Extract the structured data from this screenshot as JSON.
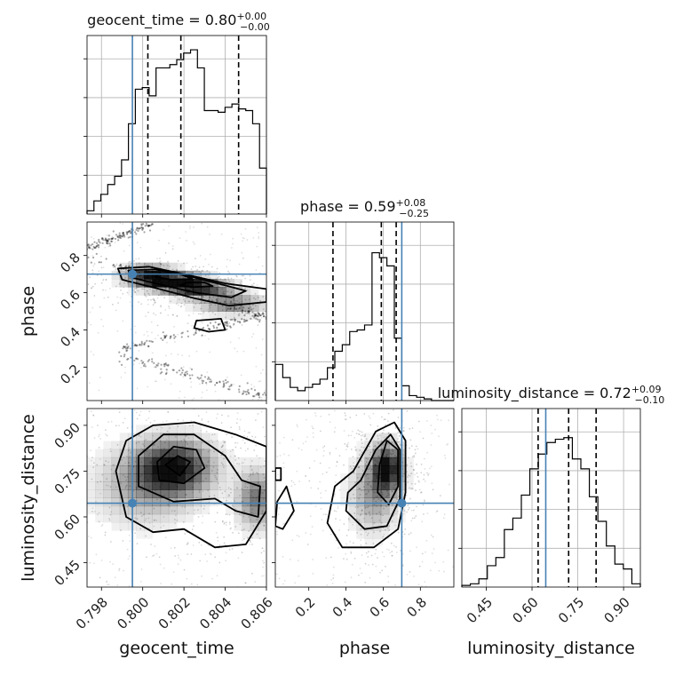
{
  "chart_data": {
    "type": "corner",
    "parameters": [
      {
        "name": "geocent_time",
        "label": "geocent_time",
        "title_main": "geocent_time = 0.80",
        "title_plus": "+0.00",
        "title_minus": "−0.00",
        "range": [
          0.7973,
          0.806
        ],
        "ticks": [
          0.798,
          0.8,
          0.802,
          0.804,
          0.806
        ],
        "tick_labels": [
          "0.798",
          "0.800",
          "0.802",
          "0.804",
          "0.806"
        ],
        "truth": 0.7995,
        "quantiles": [
          0.80025,
          0.80185,
          0.80465
        ],
        "hist_counts": [
          0.02,
          0.08,
          0.12,
          0.18,
          0.23,
          0.33,
          0.55,
          0.76,
          0.77,
          0.72,
          0.89,
          0.89,
          0.91,
          0.94,
          0.98,
          1.0,
          0.89,
          0.63,
          0.63,
          0.62,
          0.65,
          0.67,
          0.64,
          0.63,
          0.55,
          0.28
        ]
      },
      {
        "name": "phase",
        "label": "phase",
        "title_main": "phase = 0.59",
        "title_plus": "+0.08",
        "title_minus": "−0.25",
        "range": [
          0.02,
          0.98
        ],
        "ticks": [
          0.2,
          0.4,
          0.6,
          0.8
        ],
        "tick_labels": [
          "0.2",
          "0.4",
          "0.6",
          "0.8"
        ],
        "truth": 0.7,
        "quantiles": [
          0.33,
          0.59,
          0.67
        ],
        "hist_counts": [
          0.22,
          0.14,
          0.08,
          0.06,
          0.08,
          0.1,
          0.13,
          0.2,
          0.3,
          0.34,
          0.42,
          0.43,
          0.46,
          0.9,
          0.87,
          0.82,
          0.38,
          0.09,
          0.03,
          0.02,
          0.01,
          0.0,
          0.0,
          0.0
        ]
      },
      {
        "name": "luminosity_distance",
        "label": "luminosity_distance",
        "title_main": "luminosity_distance = 0.72",
        "title_plus": "+0.09",
        "title_minus": "−0.10",
        "range": [
          0.37,
          0.955
        ],
        "ticks": [
          0.45,
          0.6,
          0.75,
          0.9
        ],
        "tick_labels": [
          "0.45",
          "0.60",
          "0.75",
          "0.90"
        ],
        "truth": 0.645,
        "quantiles": [
          0.62,
          0.72,
          0.81
        ],
        "hist_counts": [
          0.01,
          0.02,
          0.05,
          0.13,
          0.18,
          0.35,
          0.42,
          0.56,
          0.72,
          0.81,
          0.88,
          0.9,
          0.91,
          0.78,
          0.72,
          0.55,
          0.4,
          0.25,
          0.14,
          0.11,
          0.02
        ]
      }
    ],
    "pairs": [
      {
        "x": "geocent_time",
        "y": "phase",
        "truth": [
          0.7995,
          0.7
        ],
        "density_blobs": [
          {
            "x": 0.8003,
            "y": 0.69,
            "sx": 0.0008,
            "sy": 0.035,
            "w": 0.9
          },
          {
            "x": 0.8016,
            "y": 0.66,
            "sx": 0.0009,
            "sy": 0.03,
            "w": 1.0
          },
          {
            "x": 0.8028,
            "y": 0.62,
            "sx": 0.001,
            "sy": 0.03,
            "w": 0.85
          },
          {
            "x": 0.8043,
            "y": 0.54,
            "sx": 0.001,
            "sy": 0.035,
            "w": 0.55
          }
        ],
        "tracks": [
          {
            "x0": 0.7973,
            "y0": 0.8,
            "x1": 0.806,
            "y1": 0.46
          },
          {
            "x0": 0.7973,
            "y0": 0.84,
            "x1": 0.8005,
            "y1": 0.97
          },
          {
            "x0": 0.799,
            "y0": 0.26,
            "x1": 0.806,
            "y1": 0.04
          },
          {
            "x0": 0.799,
            "y0": 0.3,
            "x1": 0.8058,
            "y1": 0.48
          }
        ],
        "contours": [
          [
            [
              0.7988,
              0.73
            ],
            [
              0.8003,
              0.74
            ],
            [
              0.802,
              0.7
            ],
            [
              0.804,
              0.65
            ],
            [
              0.806,
              0.62
            ],
            [
              0.806,
              0.55
            ],
            [
              0.8042,
              0.53
            ],
            [
              0.8025,
              0.57
            ],
            [
              0.8008,
              0.62
            ],
            [
              0.799,
              0.67
            ]
          ],
          [
            [
              0.7993,
              0.72
            ],
            [
              0.8006,
              0.725
            ],
            [
              0.8022,
              0.69
            ],
            [
              0.8038,
              0.645
            ],
            [
              0.805,
              0.61
            ],
            [
              0.8043,
              0.575
            ],
            [
              0.8026,
              0.6
            ],
            [
              0.801,
              0.64
            ],
            [
              0.7995,
              0.68
            ]
          ],
          [
            [
              0.8008,
              0.705
            ],
            [
              0.8018,
              0.7
            ],
            [
              0.8024,
              0.675
            ],
            [
              0.8014,
              0.67
            ],
            [
              0.8006,
              0.685
            ]
          ],
          [
            [
              0.8022,
              0.655
            ],
            [
              0.803,
              0.655
            ],
            [
              0.8034,
              0.635
            ],
            [
              0.8024,
              0.63
            ],
            [
              0.8018,
              0.64
            ]
          ],
          [
            [
              0.8026,
              0.45
            ],
            [
              0.8038,
              0.46
            ],
            [
              0.804,
              0.4
            ],
            [
              0.8032,
              0.39
            ],
            [
              0.8025,
              0.41
            ]
          ]
        ]
      },
      {
        "x": "geocent_time",
        "y": "luminosity_distance",
        "truth": [
          0.7995,
          0.645
        ],
        "density_blobs": [
          {
            "x": 0.8015,
            "y": 0.76,
            "sx": 0.0012,
            "sy": 0.06,
            "w": 1.0
          },
          {
            "x": 0.8055,
            "y": 0.66,
            "sx": 0.0006,
            "sy": 0.06,
            "w": 0.6
          },
          {
            "x": 0.8,
            "y": 0.7,
            "sx": 0.0015,
            "sy": 0.08,
            "w": 0.35
          }
        ],
        "contours": [
          [
            [
              0.7992,
              0.85
            ],
            [
              0.8005,
              0.9
            ],
            [
              0.8025,
              0.91
            ],
            [
              0.8045,
              0.87
            ],
            [
              0.806,
              0.83
            ],
            [
              0.806,
              0.62
            ],
            [
              0.805,
              0.51
            ],
            [
              0.8035,
              0.5
            ],
            [
              0.802,
              0.56
            ],
            [
              0.8005,
              0.55
            ],
            [
              0.7992,
              0.6
            ],
            [
              0.7987,
              0.75
            ]
          ],
          [
            [
              0.7998,
              0.8
            ],
            [
              0.801,
              0.87
            ],
            [
              0.8025,
              0.87
            ],
            [
              0.804,
              0.8
            ],
            [
              0.8048,
              0.72
            ],
            [
              0.8057,
              0.7
            ],
            [
              0.8056,
              0.6
            ],
            [
              0.8045,
              0.62
            ],
            [
              0.8035,
              0.66
            ],
            [
              0.8015,
              0.65
            ],
            [
              0.7998,
              0.7
            ]
          ],
          [
            [
              0.8007,
              0.78
            ],
            [
              0.8015,
              0.83
            ],
            [
              0.8026,
              0.82
            ],
            [
              0.803,
              0.76
            ],
            [
              0.802,
              0.71
            ],
            [
              0.8008,
              0.72
            ]
          ],
          [
            [
              0.8011,
              0.77
            ],
            [
              0.8017,
              0.8
            ],
            [
              0.8023,
              0.78
            ],
            [
              0.8018,
              0.735
            ]
          ]
        ]
      },
      {
        "x": "phase",
        "y": "luminosity_distance",
        "truth": [
          0.7,
          0.645
        ],
        "density_blobs": [
          {
            "x": 0.62,
            "y": 0.76,
            "sx": 0.05,
            "sy": 0.05,
            "w": 1.0
          },
          {
            "x": 0.55,
            "y": 0.68,
            "sx": 0.08,
            "sy": 0.08,
            "w": 0.45
          }
        ],
        "contours": [
          [
            [
              0.3,
              0.58
            ],
            [
              0.38,
              0.5
            ],
            [
              0.55,
              0.5
            ],
            [
              0.68,
              0.56
            ],
            [
              0.72,
              0.68
            ],
            [
              0.72,
              0.85
            ],
            [
              0.66,
              0.91
            ],
            [
              0.56,
              0.88
            ],
            [
              0.44,
              0.75
            ],
            [
              0.34,
              0.7
            ]
          ],
          [
            [
              0.4,
              0.62
            ],
            [
              0.5,
              0.56
            ],
            [
              0.62,
              0.57
            ],
            [
              0.69,
              0.66
            ],
            [
              0.69,
              0.82
            ],
            [
              0.64,
              0.87
            ],
            [
              0.56,
              0.82
            ],
            [
              0.48,
              0.72
            ],
            [
              0.41,
              0.68
            ]
          ],
          [
            [
              0.57,
              0.68
            ],
            [
              0.63,
              0.64
            ],
            [
              0.68,
              0.7
            ],
            [
              0.68,
              0.82
            ],
            [
              0.62,
              0.85
            ],
            [
              0.58,
              0.77
            ]
          ],
          [
            [
              0.03,
              0.65
            ],
            [
              0.08,
              0.7
            ],
            [
              0.12,
              0.62
            ],
            [
              0.06,
              0.56
            ],
            [
              0.02,
              0.57
            ]
          ],
          [
            [
              0.02,
              0.76
            ],
            [
              0.05,
              0.76
            ],
            [
              0.05,
              0.72
            ],
            [
              0.02,
              0.72
            ]
          ]
        ]
      }
    ],
    "truth_color": "#4682b4",
    "grid": true
  }
}
